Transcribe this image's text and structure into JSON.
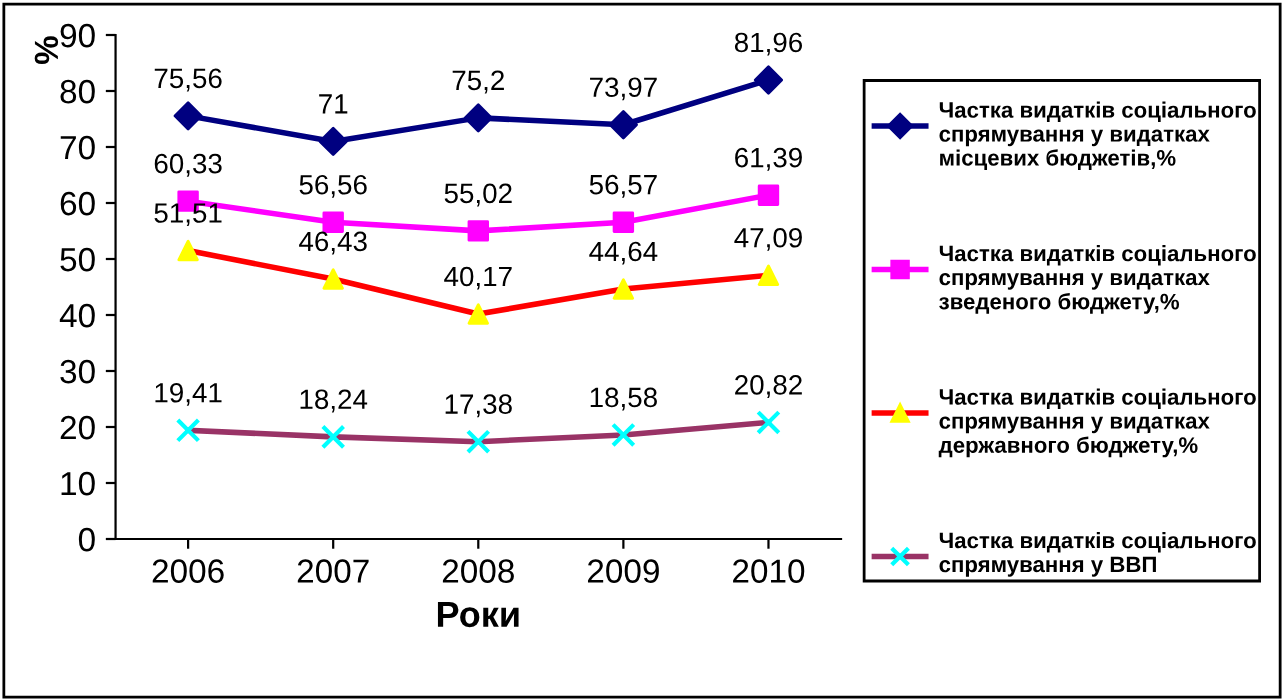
{
  "chart_data": {
    "type": "line",
    "xlabel": "Роки",
    "ylabel": "%",
    "categories": [
      "2006",
      "2007",
      "2008",
      "2009",
      "2010"
    ],
    "ylim": [
      0,
      90
    ],
    "yticks": [
      0,
      10,
      20,
      30,
      40,
      50,
      60,
      70,
      80,
      90
    ],
    "grid": false,
    "legend": "right",
    "series": [
      {
        "name": "Частка видатків соціального спрямування у видатках місцевих бюджетів,%",
        "color": "#000080",
        "marker": "diamond",
        "values": [
          75.56,
          71,
          75.2,
          73.97,
          81.96
        ],
        "value_labels": [
          "75,56",
          "71",
          "75,2",
          "73,97",
          "81,96"
        ]
      },
      {
        "name": "Частка видатків соціального спрямування у видатках зведеного бюджету,%",
        "color": "#ff00ff",
        "marker": "square",
        "values": [
          60.33,
          56.56,
          55.02,
          56.57,
          61.39
        ],
        "value_labels": [
          "60,33",
          "56,56",
          "55,02",
          "56,57",
          "61,39"
        ]
      },
      {
        "name": "Частка видатків соціального спрямування у видатках державного бюджету,%",
        "color": "#ff0000",
        "colors": [
          "#ffff00",
          "#ffff00",
          "#ffff00",
          "#ffff00",
          "#ffff00"
        ],
        "marker": "triangle",
        "values": [
          51.51,
          46.43,
          40.17,
          44.64,
          47.09
        ],
        "value_labels": [
          "51,51",
          "46,43",
          "40,17",
          "44,64",
          "47,09"
        ]
      },
      {
        "name": "Частка видатків соціального спрямування у ВВП",
        "color": "#993366",
        "colors": [
          "#00ffff",
          "#00ffff",
          "#00ffff",
          "#00ffff",
          "#00ffff"
        ],
        "marker": "cross",
        "values": [
          19.41,
          18.24,
          17.38,
          18.58,
          20.82
        ],
        "value_labels": [
          "19,41",
          "18,24",
          "17,38",
          "18,58",
          "20,82"
        ]
      }
    ]
  }
}
